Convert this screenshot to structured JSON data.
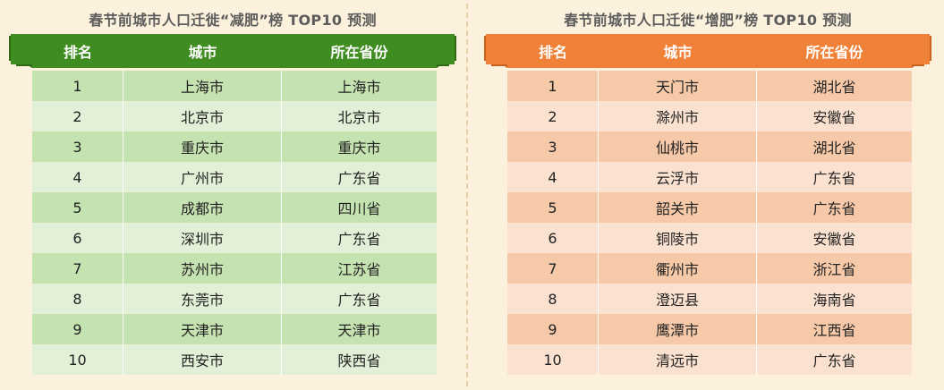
{
  "colors": {
    "background": "#fcf1dc",
    "green_header": "#3f8d21",
    "green_dark": "#2c6b12",
    "orange_header": "#ef8238",
    "orange_dark": "#c9621e"
  },
  "left": {
    "title": "春节前城市人口迁徙“减肥”榜 TOP10 预测",
    "headers": [
      "排名",
      "城市",
      "所在省份"
    ],
    "rows": [
      [
        "1",
        "上海市",
        "上海市"
      ],
      [
        "2",
        "北京市",
        "北京市"
      ],
      [
        "3",
        "重庆市",
        "重庆市"
      ],
      [
        "4",
        "广州市",
        "广东省"
      ],
      [
        "5",
        "成都市",
        "四川省"
      ],
      [
        "6",
        "深圳市",
        "广东省"
      ],
      [
        "7",
        "苏州市",
        "江苏省"
      ],
      [
        "8",
        "东莞市",
        "广东省"
      ],
      [
        "9",
        "天津市",
        "天津市"
      ],
      [
        "10",
        "西安市",
        "陕西省"
      ]
    ]
  },
  "right": {
    "title": "春节前城市人口迁徙“增肥”榜 TOP10 预测",
    "headers": [
      "排名",
      "城市",
      "所在省份"
    ],
    "rows": [
      [
        "1",
        "天门市",
        "湖北省"
      ],
      [
        "2",
        "滁州市",
        "安徽省"
      ],
      [
        "3",
        "仙桃市",
        "湖北省"
      ],
      [
        "4",
        "云浮市",
        "广东省"
      ],
      [
        "5",
        "韶关市",
        "广东省"
      ],
      [
        "6",
        "铜陵市",
        "安徽省"
      ],
      [
        "7",
        "衢州市",
        "浙江省"
      ],
      [
        "8",
        "澄迈县",
        "海南省"
      ],
      [
        "9",
        "鹰潭市",
        "江西省"
      ],
      [
        "10",
        "清远市",
        "广东省"
      ]
    ]
  }
}
